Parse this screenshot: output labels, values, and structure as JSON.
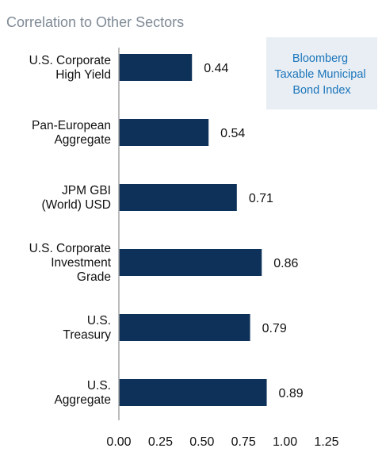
{
  "chart_data": {
    "type": "bar",
    "orientation": "horizontal",
    "title": "Correlation to Other Sectors",
    "categories": [
      [
        "U.S. Corporate",
        "High Yield"
      ],
      [
        "Pan-European",
        "Aggregate"
      ],
      [
        "JPM GBI",
        "(World) USD"
      ],
      [
        "U.S. Corporate",
        "Investment",
        "Grade"
      ],
      [
        "U.S.",
        "Treasury"
      ],
      [
        "U.S.",
        "Aggregate"
      ]
    ],
    "values": [
      0.44,
      0.54,
      0.71,
      0.86,
      0.79,
      0.89
    ],
    "value_labels": [
      "0.44",
      "0.54",
      "0.71",
      "0.86",
      "0.79",
      "0.89"
    ],
    "xlim": [
      0,
      1.25
    ],
    "xticks": [
      "0.00",
      "0.25",
      "0.50",
      "0.75",
      "1.00",
      "1.25"
    ],
    "legend": {
      "lines": [
        "Bloomberg",
        "Taxable Municipal",
        "Bond Index"
      ],
      "placement": "top-right"
    },
    "grid": false,
    "colors": {
      "bar": "#0d3158",
      "legend_bg": "#e8eef3",
      "legend_text": "#1b75bc",
      "title": "#7f8a96"
    }
  }
}
